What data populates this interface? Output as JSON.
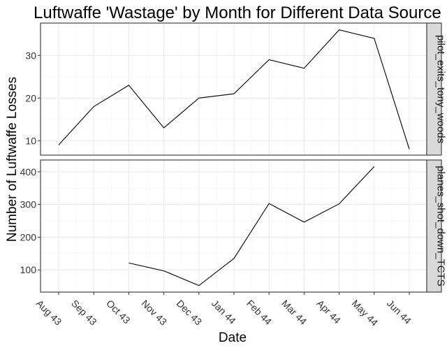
{
  "chart_data": {
    "type": "line",
    "title": "Luftwaffe 'Wastage' by Month for Different Data Source",
    "xlabel": "Date",
    "ylabel": "Number of Luftwaffe Losses",
    "x_ticks": [
      "Aug 43",
      "Sep 43",
      "Oct 43",
      "Nov 43",
      "Dec 43",
      "Jan 44",
      "Feb 44",
      "Mar 44",
      "Apr 44",
      "May 44",
      "Jun 44"
    ],
    "grid": true,
    "facets": [
      {
        "strip": "pilot_exits_tony_woods",
        "y_ticks": [
          10,
          20,
          30
        ],
        "ylim": [
          6.6,
          37.6
        ],
        "x": [
          "Aug 43",
          "Sep 43",
          "Oct 43",
          "Nov 43",
          "Dec 43",
          "Jan 44",
          "Feb 44",
          "Mar 44",
          "Apr 44",
          "May 44",
          "Jun 44"
        ],
        "values": [
          9,
          18,
          23,
          13,
          20,
          21,
          29,
          27,
          36,
          34,
          8
        ]
      },
      {
        "strip": "planes_shot_down_TCTS",
        "y_ticks": [
          100,
          200,
          300,
          400
        ],
        "ylim": [
          32,
          436
        ],
        "x": [
          "Oct 43",
          "Nov 43",
          "Dec 43",
          "Jan 44",
          "Feb 44",
          "Mar 44",
          "Apr 44",
          "May 44"
        ],
        "values": [
          121,
          97,
          52,
          135,
          303,
          246,
          302,
          416
        ]
      }
    ]
  }
}
